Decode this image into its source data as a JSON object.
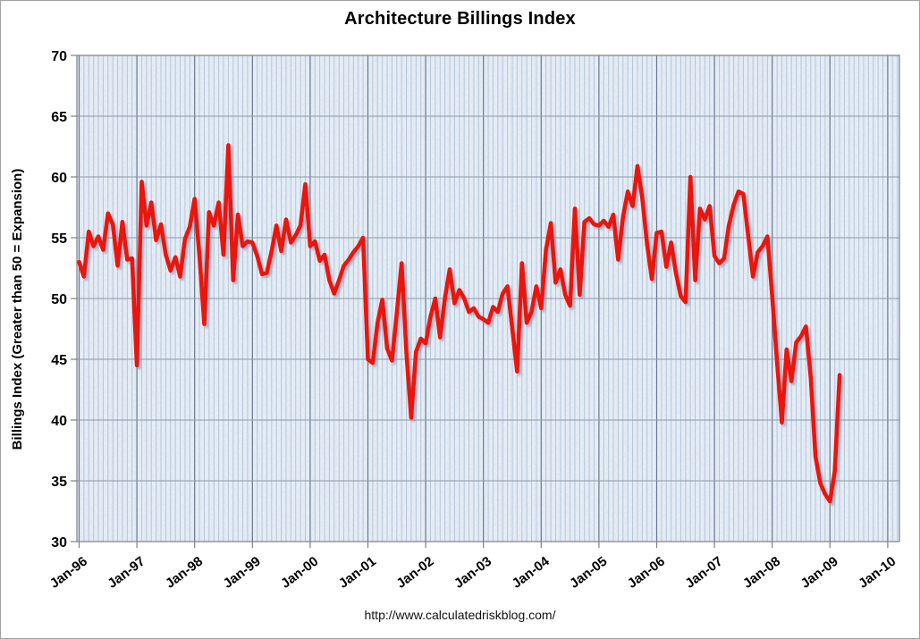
{
  "title": "Architecture Billings Index",
  "footer": {
    "url": "http://www.calculatedriskblog.com/"
  },
  "colors": {
    "line": "#e8130a",
    "plot_bg": "#e9f0f8",
    "plot_bg_speckle": "#a7bcd8",
    "grid_month": "#b7c6d8",
    "grid_year": "#68788e",
    "grid_horizontal": "#8d99a6",
    "axis": "#808080",
    "text": "#000000"
  },
  "chart_data": {
    "type": "line",
    "title": "Architecture Billings Index",
    "xlabel": "",
    "ylabel": "Billings Index (Greater than 50 = Expansion)",
    "ylim": [
      30,
      70
    ],
    "y_ticks": [
      30,
      35,
      40,
      45,
      50,
      55,
      60,
      65,
      70
    ],
    "x_tick_labels": [
      "Jan-96",
      "Jan-97",
      "Jan-98",
      "Jan-99",
      "Jan-00",
      "Jan-01",
      "Jan-02",
      "Jan-03",
      "Jan-04",
      "Jan-05",
      "Jan-06",
      "Jan-07",
      "Jan-08",
      "Jan-09",
      "Jan-10"
    ],
    "grid": "vertical line every month (darker every January), horizontal line every 5 units",
    "legend": "none",
    "frequency": "monthly",
    "first_point": "Jan-1996",
    "last_point": "Mar-2009",
    "series": [
      {
        "name": "Architecture Billings Index",
        "values": [
          53.0,
          51.8,
          55.5,
          54.3,
          55.1,
          54.0,
          57.0,
          56.1,
          52.7,
          56.3,
          53.2,
          53.3,
          44.5,
          59.6,
          56.0,
          57.9,
          54.8,
          56.1,
          53.6,
          52.3,
          53.4,
          51.8,
          54.9,
          55.9,
          58.2,
          53.5,
          47.9,
          57.1,
          56.0,
          57.9,
          53.6,
          62.6,
          51.5,
          56.9,
          54.3,
          54.7,
          54.6,
          53.5,
          52.0,
          52.1,
          53.9,
          56.0,
          53.9,
          56.5,
          54.6,
          55.2,
          56.0,
          59.4,
          54.3,
          54.7,
          53.1,
          53.6,
          51.5,
          50.4,
          51.5,
          52.7,
          53.2,
          53.8,
          54.3,
          55.0,
          45.0,
          44.7,
          48.0,
          49.9,
          45.9,
          44.9,
          48.8,
          52.9,
          45.5,
          40.2,
          45.6,
          46.7,
          46.3,
          48.5,
          50.0,
          46.8,
          50.0,
          52.4,
          49.6,
          50.7,
          50.0,
          48.9,
          49.2,
          48.5,
          48.3,
          48.0,
          49.3,
          48.9,
          50.4,
          51.0,
          47.5,
          44.0,
          52.9,
          48.0,
          48.9,
          51.0,
          49.2,
          54.0,
          56.2,
          51.3,
          52.4,
          50.3,
          49.4,
          57.4,
          50.3,
          56.3,
          56.6,
          56.1,
          56.0,
          56.4,
          55.9,
          56.9,
          53.2,
          56.7,
          58.8,
          57.6,
          60.9,
          58.3,
          54.5,
          51.6,
          55.4,
          55.5,
          52.6,
          54.6,
          52.1,
          50.2,
          49.7,
          60.0,
          51.5,
          57.4,
          56.5,
          57.6,
          53.5,
          52.9,
          53.3,
          56.0,
          57.7,
          58.8,
          58.6,
          55.2,
          51.8,
          53.8,
          54.3,
          55.1,
          50.2,
          44.8,
          39.8,
          45.8,
          43.2,
          46.4,
          46.9,
          47.7,
          43.5,
          37.0,
          34.8,
          33.9,
          33.3,
          35.8,
          43.7
        ]
      }
    ]
  }
}
